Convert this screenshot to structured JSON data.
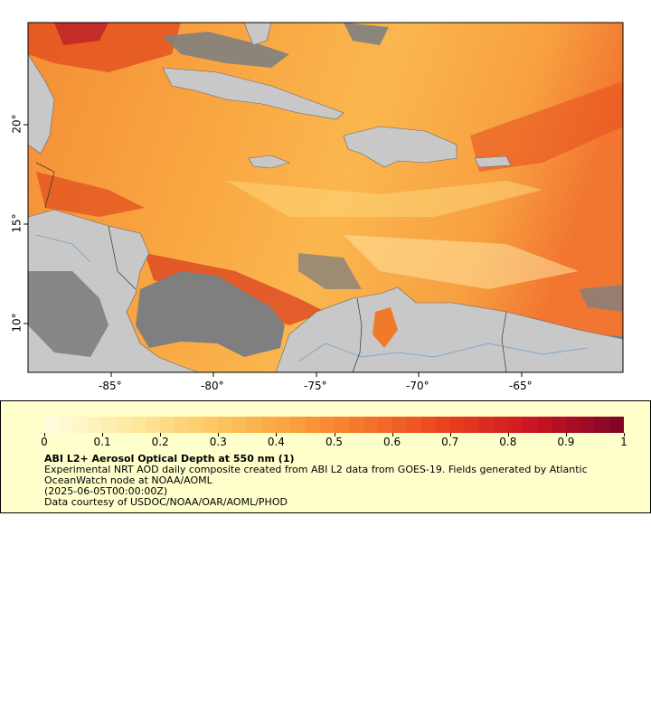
{
  "map": {
    "lon_ticks": [
      "-85°",
      "-80°",
      "-75°",
      "-70°",
      "-65°"
    ],
    "lat_ticks": [
      "20°",
      "15°",
      "10°"
    ],
    "colors": {
      "ocean_low": "#fde9a3",
      "ocean_mid": "#fbb040",
      "ocean_high": "#e0401c",
      "ocean_max": "#9a0d25",
      "land": "#c8c8c8",
      "no_data": "#7f7f7f",
      "coast": "#555555",
      "rivers": "#6f9ec8"
    }
  },
  "legend": {
    "ticks": [
      "0",
      "0.1",
      "0.2",
      "0.3",
      "0.4",
      "0.5",
      "0.6",
      "0.7",
      "0.8",
      "0.9",
      "1"
    ],
    "title": "ABI L2+ Aerosol Optical Depth at 550 nm (1)",
    "line1": "Experimental NRT AOD daily composite created from ABI L2 data from GOES-19. Fields generated by Atlantic OceanWatch node at NOAA/AOML",
    "line2": "(2025-06-05T00:00:00Z)",
    "line3": "Data courtesy of USDOC/NOAA/OAR/AOML/PHOD"
  }
}
